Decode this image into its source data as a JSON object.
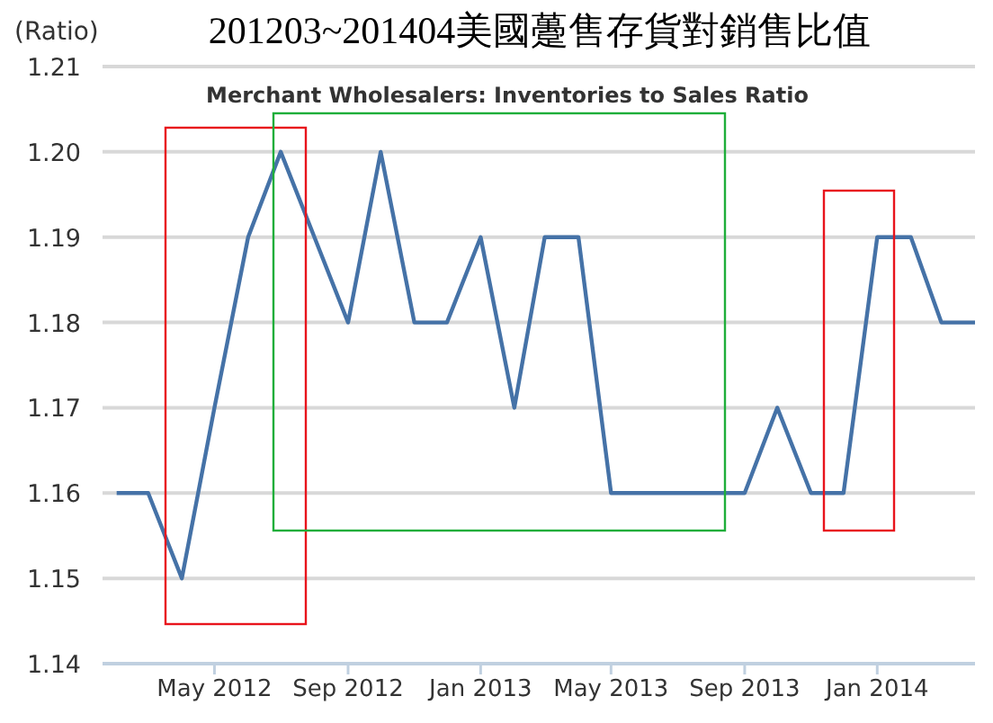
{
  "chart_data": {
    "type": "line",
    "title": "201203~201404美國躉售存貨對銷售比值",
    "subtitle": "Merchant Wholesalers: Inventories to Sales Ratio",
    "ylabel": "(Ratio)",
    "x": [
      "2012-02",
      "2012-03",
      "2012-04",
      "2012-05",
      "2012-06",
      "2012-07",
      "2012-08",
      "2012-09",
      "2012-10",
      "2012-11",
      "2012-12",
      "2013-01",
      "2013-02",
      "2013-03",
      "2013-04",
      "2013-05",
      "2013-06",
      "2013-07",
      "2013-08",
      "2013-09",
      "2013-10",
      "2013-11",
      "2013-12",
      "2014-01",
      "2014-02",
      "2014-03",
      "2014-04"
    ],
    "series": [
      {
        "color": "#4572a7",
        "values": [
          1.16,
          1.16,
          1.15,
          1.17,
          1.19,
          1.2,
          1.19,
          1.18,
          1.2,
          1.18,
          1.18,
          1.19,
          1.17,
          1.19,
          1.19,
          1.16,
          1.16,
          1.16,
          1.16,
          1.16,
          1.17,
          1.16,
          1.16,
          1.19,
          1.19,
          1.18,
          1.18
        ]
      }
    ],
    "xlim": [
      "2012-01-19",
      "2014-04-01"
    ],
    "ylim": [
      1.14,
      1.21
    ],
    "yticks": [
      1.14,
      1.15,
      1.16,
      1.17,
      1.18,
      1.19,
      {
        "value": 1.2,
        "label": "1.20"
      },
      1.21
    ],
    "xticks": [
      {
        "value": "2012-05",
        "label": "May 2012"
      },
      {
        "value": "2012-09",
        "label": "Sep 2012"
      },
      {
        "value": "2013-01",
        "label": "Jan 2013"
      },
      {
        "value": "2013-05",
        "label": "May 2013"
      },
      {
        "value": "2013-09",
        "label": "Sep 2013"
      },
      {
        "value": "2014-01",
        "label": "Jan 2014"
      }
    ],
    "grid": "y"
  }
}
